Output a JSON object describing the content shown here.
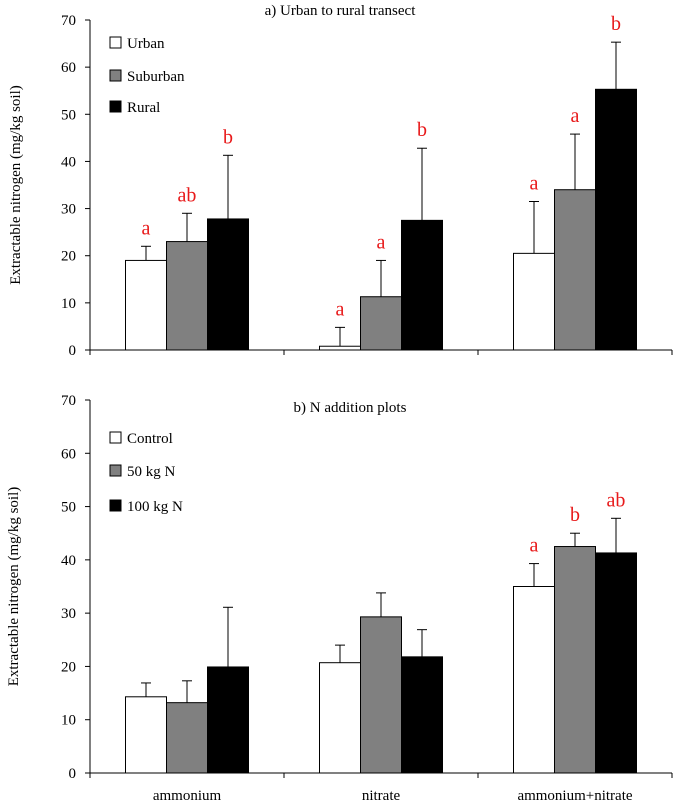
{
  "colors": {
    "series": [
      "#ffffff",
      "#808080",
      "#000000"
    ],
    "significance": "#e8191a"
  },
  "chart_data": [
    {
      "type": "bar",
      "title": "a) Urban to rural transect",
      "ylabel": "Extractable  nitrogen  (mg/kg  soil)",
      "xlabel": "",
      "ylim": [
        0,
        70
      ],
      "yticks": [
        0,
        10,
        20,
        30,
        40,
        50,
        60,
        70
      ],
      "categories": [
        "ammonium",
        "nitrate",
        "ammonium+nitrate"
      ],
      "show_category_labels": false,
      "series": [
        {
          "name": "Urban",
          "values": [
            19,
            0.8,
            20.5
          ],
          "errors": [
            3,
            4,
            11
          ],
          "letters": [
            "a",
            "a",
            "a"
          ]
        },
        {
          "name": "Suburban",
          "values": [
            23,
            11.3,
            34
          ],
          "errors": [
            6,
            7.7,
            11.8
          ],
          "letters": [
            "ab",
            "a",
            "a"
          ]
        },
        {
          "name": "Rural",
          "values": [
            27.8,
            27.5,
            55.3
          ],
          "errors": [
            13.5,
            15.3,
            10
          ],
          "letters": [
            "b",
            "b",
            "b"
          ]
        }
      ],
      "legend_position": "top-left"
    },
    {
      "type": "bar",
      "title": "b) N  addition  plots",
      "ylabel": "Extractable  nitrogen  (mg/kg  soil)",
      "xlabel": "",
      "ylim": [
        0,
        70
      ],
      "yticks": [
        0,
        10,
        20,
        30,
        40,
        50,
        60,
        70
      ],
      "categories": [
        "ammonium",
        "nitrate",
        "ammonium+nitrate"
      ],
      "show_category_labels": true,
      "series": [
        {
          "name": "Control",
          "values": [
            14.3,
            20.7,
            35
          ],
          "errors": [
            2.6,
            3.3,
            4.3
          ],
          "letters": [
            "",
            "",
            "a"
          ]
        },
        {
          "name": "50  kg  N",
          "values": [
            13.2,
            29.3,
            42.5
          ],
          "errors": [
            4.1,
            4.5,
            2.5
          ],
          "letters": [
            "",
            "",
            "b"
          ]
        },
        {
          "name": "100  kg  N",
          "values": [
            19.9,
            21.8,
            41.3
          ],
          "errors": [
            11.2,
            5.1,
            6.5
          ],
          "letters": [
            "",
            "",
            "ab"
          ]
        }
      ],
      "legend_position": "top-left"
    }
  ]
}
